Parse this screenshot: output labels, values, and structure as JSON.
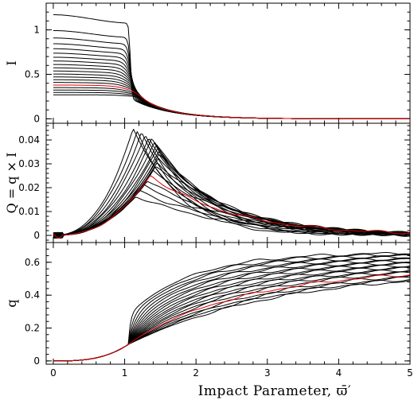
{
  "colors": {
    "curve": "#000000",
    "highlight": "#e00000"
  },
  "chart_data": [
    {
      "type": "line",
      "ylabel": "I",
      "xlim": [
        -0.1,
        5
      ],
      "ylim": [
        -0.05,
        1.3
      ],
      "yticks": [
        0,
        0.5,
        1
      ],
      "ytick_labels": [
        "0",
        "0.5",
        "1"
      ],
      "family": {
        "count": 20,
        "highlight_index": 15,
        "peak_value_range": [
          1.17,
          0.27
        ],
        "plateau_end_x": [
          1.05,
          1.15
        ]
      },
      "series_samples": [
        {
          "x": [
            0,
            0.5,
            1.0,
            1.1,
            1.5,
            2,
            3,
            4,
            5
          ],
          "y": [
            1.17,
            1.16,
            0.85,
            0.2,
            0.08,
            0.04,
            0.015,
            0.005,
            0.002
          ]
        },
        {
          "x": [
            0,
            0.5,
            1.0,
            1.1,
            1.5,
            2,
            3,
            4,
            5
          ],
          "y": [
            0.38,
            0.37,
            0.3,
            0.24,
            0.12,
            0.05,
            0.015,
            0.005,
            0.002
          ]
        },
        {
          "x": [
            0,
            0.5,
            1.0,
            1.1,
            1.5,
            2,
            3,
            4,
            5
          ],
          "y": [
            0.27,
            0.27,
            0.24,
            0.22,
            0.13,
            0.06,
            0.02,
            0.006,
            0.002
          ]
        }
      ]
    },
    {
      "type": "line",
      "ylabel": "Q = q × I",
      "xlim": [
        -0.1,
        5
      ],
      "ylim": [
        -0.003,
        0.047
      ],
      "yticks": [
        0,
        0.01,
        0.02,
        0.03,
        0.04
      ],
      "ytick_labels": [
        "0",
        "0.01",
        "0.02",
        "0.03",
        "0.04"
      ],
      "family": {
        "count": 20,
        "highlight_index": 15,
        "peak_value_range": [
          0.0445,
          0.0165
        ],
        "peak_x_range": [
          1.12,
          1.5
        ]
      },
      "series_samples": [
        {
          "x": [
            0,
            0.5,
            1.12,
            1.5,
            2,
            3,
            4,
            5
          ],
          "y": [
            0.0,
            0.003,
            0.018,
            0.012,
            0.006,
            0.002,
            0.001,
            0.0003
          ]
        },
        {
          "x": [
            0,
            0.5,
            1.35,
            2,
            3,
            4,
            5
          ],
          "y": [
            0.0,
            0.004,
            0.0255,
            0.021,
            0.01,
            0.005,
            0.002
          ]
        },
        {
          "x": [
            0,
            0.5,
            1.15,
            2,
            3,
            4,
            5
          ],
          "y": [
            0.0,
            0.004,
            0.0445,
            0.023,
            0.012,
            0.006,
            0.002
          ]
        }
      ]
    },
    {
      "type": "line",
      "ylabel": "q",
      "xlabel": "Impact Parameter, ϖ̄′",
      "xlim": [
        -0.1,
        5
      ],
      "ylim": [
        -0.02,
        0.72
      ],
      "yticks": [
        0,
        0.2,
        0.4,
        0.6
      ],
      "ytick_labels": [
        "0",
        "0.2",
        "0.4",
        "0.6"
      ],
      "xticks": [
        0,
        1,
        2,
        3,
        4,
        5
      ],
      "xtick_labels": [
        "0",
        "1",
        "2",
        "3",
        "4",
        "5"
      ],
      "family": {
        "count": 20,
        "highlight_index": 15,
        "end_value_range": [
          0.66,
          0.55
        ]
      },
      "series_samples": [
        {
          "x": [
            0,
            0.5,
            1.0,
            1.1,
            2,
            3,
            4,
            5
          ],
          "y": [
            0.0,
            0.02,
            0.1,
            0.28,
            0.52,
            0.6,
            0.64,
            0.66
          ]
        },
        {
          "x": [
            0,
            0.5,
            1.0,
            2,
            3,
            4,
            5
          ],
          "y": [
            0.0,
            0.02,
            0.08,
            0.3,
            0.42,
            0.5,
            0.57
          ]
        },
        {
          "x": [
            0,
            0.5,
            1.0,
            2,
            3,
            4,
            5
          ],
          "y": [
            0.0,
            0.02,
            0.07,
            0.26,
            0.4,
            0.48,
            0.55
          ]
        }
      ]
    }
  ]
}
